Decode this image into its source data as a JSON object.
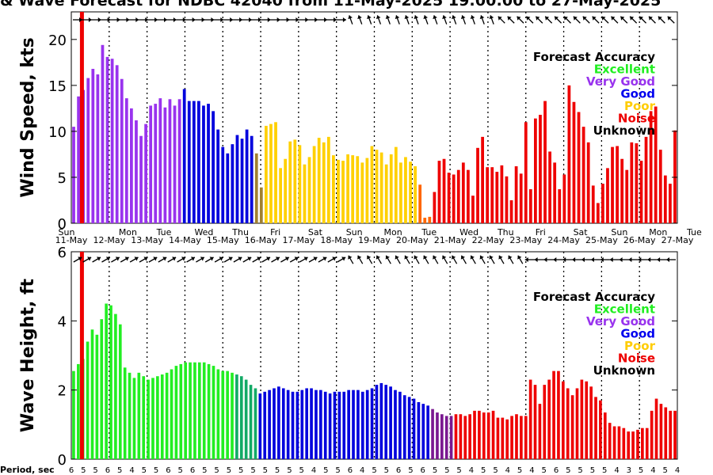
{
  "title": "& Wave Forecast for NDBC 42040 from 11-May-2025 19:00:00 to 27-May-2025",
  "legend": {
    "title": "Forecast Accuracy",
    "entries": [
      {
        "label": "Excellent",
        "color": "#22ee22"
      },
      {
        "label": "Very Good",
        "color": "#9933ee"
      },
      {
        "label": "Good",
        "color": "#0000ee"
      },
      {
        "label": "Poor",
        "color": "#ffcc00"
      },
      {
        "label": "Noise",
        "color": "#ee0000"
      },
      {
        "label": "Unknown",
        "color": "#000000"
      }
    ]
  },
  "period_label": "Period, sec",
  "periods": [
    6,
    5,
    5,
    6,
    5,
    4,
    5,
    5,
    6,
    5,
    6,
    5,
    5,
    5,
    5,
    5,
    5,
    5,
    5,
    5,
    4,
    5,
    5,
    6,
    4,
    5,
    5,
    6,
    5,
    6,
    5,
    5,
    5,
    4,
    5,
    5,
    4,
    5,
    4,
    5,
    6,
    5,
    5,
    5,
    5,
    4,
    3,
    5,
    4,
    5,
    4
  ],
  "chart_data": [
    {
      "type": "bar",
      "title": "& Wave Forecast for NDBC 42040 from 11-May-2025 19:00:00 to 27-May-2025",
      "ylabel": "Wind Speed, kts",
      "ylim": [
        0,
        23
      ],
      "yticks": [
        0,
        5,
        10,
        15,
        20
      ],
      "xlim": [
        0,
        16
      ],
      "day_labels": [
        {
          "dow": "Sun",
          "date": "11-May"
        },
        {
          "dow": "Mon",
          "date": "12-May"
        },
        {
          "dow": "Tue",
          "date": "13-May"
        },
        {
          "dow": "Wed",
          "date": "14-May"
        },
        {
          "dow": "Thu",
          "date": "15-May"
        },
        {
          "dow": "Fri",
          "date": "16-May"
        },
        {
          "dow": "Sat",
          "date": "17-May"
        },
        {
          "dow": "Sun",
          "date": "18-May"
        },
        {
          "dow": "Mon",
          "date": "19-May"
        },
        {
          "dow": "Tue",
          "date": "20-May"
        },
        {
          "dow": "Wed",
          "date": "21-May"
        },
        {
          "dow": "Thu",
          "date": "22-May"
        },
        {
          "dow": "Fri",
          "date": "23-May"
        },
        {
          "dow": "Sat",
          "date": "24-May"
        },
        {
          "dow": "Sun",
          "date": "25-May"
        },
        {
          "dow": "Mon",
          "date": "26-May"
        },
        {
          "dow": "Tue",
          "date": "27-May"
        }
      ],
      "values": [
        10.5,
        13.8,
        14.5,
        15.8,
        16.8,
        16.2,
        19.4,
        18.1,
        17.9,
        17.2,
        15.7,
        13.6,
        12.5,
        11.2,
        9.5,
        10.8,
        12.8,
        13.0,
        13.6,
        12.6,
        13.5,
        12.8,
        13.5,
        14.6,
        13.3,
        13.3,
        13.3,
        12.8,
        13.0,
        12.2,
        10.2,
        8.3,
        7.6,
        8.6,
        9.6,
        9.2,
        10.2,
        9.5,
        7.6,
        3.9,
        10.6,
        10.8,
        11.0,
        6.0,
        7.0,
        8.9,
        9.1,
        8.5,
        6.4,
        7.2,
        8.4,
        9.3,
        8.8,
        9.4,
        7.4,
        6.9,
        6.8,
        7.5,
        7.4,
        7.3,
        6.6,
        7.1,
        8.4,
        8.0,
        7.7,
        6.4,
        7.5,
        8.3,
        6.6,
        7.2,
        6.7,
        6.2,
        4.2,
        0.6,
        0.7,
        3.4,
        6.8,
        7.0,
        5.5,
        5.3,
        5.8,
        6.6,
        5.8,
        3.0,
        8.2,
        9.4,
        6.1,
        6.1,
        5.6,
        6.3,
        5.1,
        2.5,
        6.2,
        5.4,
        11.0,
        3.7,
        11.4,
        11.8,
        13.3,
        7.8,
        6.6,
        3.7,
        5.3,
        15.0,
        13.2,
        12.1,
        10.5,
        8.8,
        4.1,
        2.2,
        4.3,
        6.0,
        8.3,
        8.4,
        7.0,
        5.8,
        8.8,
        8.7,
        6.8,
        9.4,
        12.2,
        12.7,
        8.0,
        5.2,
        4.3,
        10.1
      ],
      "colors": [
        "p",
        "p",
        "p",
        "p",
        "p",
        "p",
        "p",
        "p",
        "p",
        "p",
        "p",
        "p",
        "p",
        "p",
        "p",
        "p",
        "p",
        "p",
        "p",
        "p",
        "p",
        "p",
        "p",
        "b",
        "b",
        "b",
        "b",
        "b",
        "b",
        "b",
        "b",
        "b",
        "b",
        "b",
        "b",
        "b",
        "b",
        "b",
        "x",
        "x",
        "y",
        "y",
        "y",
        "y",
        "y",
        "y",
        "y",
        "y",
        "y",
        "y",
        "y",
        "y",
        "y",
        "y",
        "y",
        "y",
        "y",
        "y",
        "y",
        "y",
        "y",
        "y",
        "y",
        "y",
        "y",
        "y",
        "y",
        "y",
        "y",
        "y",
        "y",
        "y",
        "o",
        "o",
        "o",
        "r",
        "r",
        "r",
        "r",
        "r",
        "r",
        "r",
        "r",
        "r",
        "r",
        "r",
        "r",
        "r",
        "r",
        "r",
        "r",
        "r",
        "r",
        "r",
        "r",
        "r",
        "r",
        "r",
        "r",
        "r",
        "r",
        "r",
        "r",
        "r",
        "r",
        "r",
        "r",
        "r",
        "r",
        "r",
        "r",
        "r",
        "r",
        "r",
        "r",
        "r",
        "r",
        "r",
        "r",
        "r",
        "r",
        "r",
        "r",
        "r",
        "r",
        "r"
      ]
    },
    {
      "type": "bar",
      "ylabel": "Wave Height, ft",
      "ylim": [
        0,
        6
      ],
      "yticks": [
        0,
        2,
        4,
        6
      ],
      "xlim": [
        0,
        16
      ],
      "values": [
        2.55,
        2.75,
        2.9,
        3.4,
        3.75,
        3.6,
        4.05,
        4.5,
        4.45,
        4.2,
        3.9,
        2.65,
        2.5,
        2.35,
        2.5,
        2.4,
        2.3,
        2.35,
        2.4,
        2.45,
        2.5,
        2.6,
        2.7,
        2.75,
        2.8,
        2.8,
        2.8,
        2.8,
        2.8,
        2.75,
        2.7,
        2.6,
        2.55,
        2.55,
        2.5,
        2.45,
        2.4,
        2.3,
        2.15,
        2.05,
        1.9,
        1.95,
        2.0,
        2.05,
        2.1,
        2.05,
        2.0,
        1.95,
        1.95,
        2.0,
        2.05,
        2.05,
        2.0,
        2.0,
        1.95,
        1.9,
        1.95,
        1.95,
        1.95,
        2.0,
        2.0,
        2.0,
        1.95,
        2.0,
        2.05,
        2.15,
        2.2,
        2.15,
        2.1,
        2.0,
        1.95,
        1.85,
        1.8,
        1.75,
        1.65,
        1.6,
        1.55,
        1.45,
        1.35,
        1.3,
        1.25,
        1.25,
        1.3,
        1.3,
        1.25,
        1.3,
        1.4,
        1.4,
        1.35,
        1.35,
        1.4,
        1.2,
        1.2,
        1.15,
        1.25,
        1.3,
        1.25,
        1.25,
        2.3,
        2.15,
        1.6,
        2.15,
        2.3,
        2.55,
        2.55,
        2.25,
        2.05,
        1.85,
        2.05,
        2.3,
        2.25,
        2.1,
        1.8,
        1.7,
        1.35,
        1.05,
        0.95,
        0.95,
        0.9,
        0.8,
        0.8,
        0.85,
        0.9,
        0.9,
        1.4,
        1.75,
        1.6,
        1.5,
        1.4,
        1.4
      ],
      "colors": [
        "g",
        "g",
        "g",
        "g",
        "g",
        "g",
        "g",
        "g",
        "g",
        "g",
        "g",
        "g",
        "g",
        "g",
        "g",
        "g",
        "g",
        "g",
        "g",
        "g",
        "g",
        "g",
        "g",
        "g",
        "g",
        "g",
        "g",
        "g",
        "g",
        "g",
        "g",
        "g",
        "g",
        "g",
        "g",
        "t",
        "t",
        "t",
        "t",
        "t",
        "b",
        "b",
        "b",
        "b",
        "b",
        "b",
        "b",
        "b",
        "b",
        "b",
        "b",
        "b",
        "b",
        "b",
        "b",
        "b",
        "b",
        "b",
        "b",
        "b",
        "b",
        "b",
        "b",
        "b",
        "b",
        "b",
        "b",
        "b",
        "b",
        "b",
        "b",
        "b",
        "b",
        "b",
        "b",
        "b",
        "b",
        "v",
        "v",
        "v",
        "v",
        "v",
        "r",
        "r",
        "r",
        "r",
        "r",
        "r",
        "r",
        "r",
        "r",
        "r",
        "r",
        "r",
        "r",
        "r",
        "r",
        "r",
        "r",
        "r",
        "r",
        "r",
        "r",
        "r",
        "r",
        "r",
        "r",
        "r",
        "r",
        "r",
        "r",
        "r",
        "r",
        "r",
        "r",
        "r",
        "r",
        "r",
        "r",
        "r",
        "r",
        "r",
        "r",
        "r",
        "r",
        "r",
        "r",
        "r",
        "r",
        "r"
      ]
    }
  ],
  "color_map": {
    "p": "#9933ee",
    "b": "#0000dd",
    "x": "#a08030",
    "y": "#ffd000",
    "o": "#ff6600",
    "r": "#ee0000",
    "g": "#22ee22",
    "t": "#12aa66",
    "v": "#7a1890"
  },
  "current_time_line_color": "#ee0000"
}
